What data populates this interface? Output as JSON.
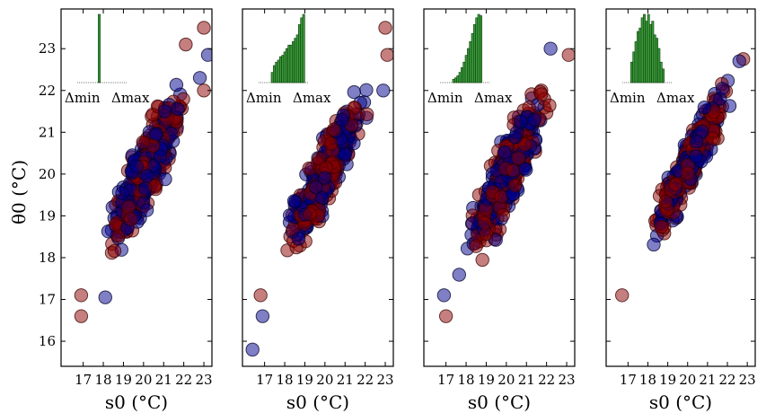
{
  "chart_data": {
    "type": "scatter",
    "layout": "1x4 panels, shared y-axis",
    "ylabel": "θ0 (°C)",
    "xlabel": "s0 (°C)",
    "xlim": [
      15.9,
      23.4
    ],
    "ylim": [
      15.4,
      23.95
    ],
    "xticks": [
      17,
      18,
      19,
      20,
      21,
      22,
      23
    ],
    "yticks": [
      16,
      17,
      18,
      19,
      20,
      21,
      22,
      23
    ],
    "series_colors": {
      "red": "#8b0000",
      "blue": "#00008b"
    },
    "inset": {
      "type": "histogram",
      "color": "#3a9a3a",
      "label_min": "Δmin",
      "label_max": "Δmax"
    },
    "panels": [
      {
        "label": "panel-1",
        "cloud": {
          "x_range": [
            17.2,
            23.0
          ],
          "y_center": 20.0,
          "spread": 0.55
        },
        "outliers": [
          {
            "x": 16.9,
            "y": 17.1,
            "c": "red"
          },
          {
            "x": 16.9,
            "y": 16.6,
            "c": "red"
          },
          {
            "x": 18.1,
            "y": 17.05,
            "c": "blue"
          },
          {
            "x": 23.0,
            "y": 23.5,
            "c": "red"
          },
          {
            "x": 22.1,
            "y": 23.1,
            "c": "red"
          },
          {
            "x": 23.2,
            "y": 22.85,
            "c": "blue"
          },
          {
            "x": 22.8,
            "y": 22.3,
            "c": "blue"
          },
          {
            "x": 23.0,
            "y": 22.0,
            "c": "red"
          }
        ],
        "hist": [
          0,
          0,
          0,
          0,
          0,
          0,
          0,
          0,
          0,
          0,
          1,
          0,
          0,
          0,
          0,
          0,
          0,
          0,
          0,
          0,
          0,
          0,
          0,
          0
        ]
      },
      {
        "label": "panel-2",
        "cloud": {
          "x_range": [
            17.2,
            23.0
          ],
          "y_center": 20.0,
          "spread": 0.5
        },
        "outliers": [
          {
            "x": 16.8,
            "y": 17.1,
            "c": "red"
          },
          {
            "x": 16.9,
            "y": 16.6,
            "c": "blue"
          },
          {
            "x": 16.4,
            "y": 15.8,
            "c": "blue"
          },
          {
            "x": 23.0,
            "y": 23.5,
            "c": "red"
          },
          {
            "x": 23.1,
            "y": 22.85,
            "c": "red"
          },
          {
            "x": 22.9,
            "y": 22.0,
            "c": "blue"
          }
        ],
        "hist": [
          0,
          0,
          0,
          0,
          0,
          0,
          0.15,
          0.25,
          0.3,
          0.33,
          0.38,
          0.4,
          0.45,
          0.5,
          0.55,
          0.55,
          0.6,
          0.65,
          0.7,
          0.85,
          0.95,
          1.0,
          0,
          0
        ]
      },
      {
        "label": "panel-3",
        "cloud": {
          "x_range": [
            17.2,
            23.0
          ],
          "y_center": 20.0,
          "spread": 0.55
        },
        "outliers": [
          {
            "x": 16.9,
            "y": 17.1,
            "c": "blue"
          },
          {
            "x": 17.0,
            "y": 16.6,
            "c": "red"
          },
          {
            "x": 22.2,
            "y": 23.0,
            "c": "blue"
          },
          {
            "x": 23.1,
            "y": 22.85,
            "c": "red"
          }
        ],
        "hist": [
          0,
          0,
          0,
          0,
          0,
          0,
          0.05,
          0.07,
          0.1,
          0.15,
          0.22,
          0.3,
          0.4,
          0.5,
          0.6,
          0.72,
          0.85,
          0.95,
          1.0,
          0.98,
          0,
          0,
          0,
          0
        ]
      },
      {
        "label": "panel-4",
        "cloud": {
          "x_range": [
            17.3,
            23.0
          ],
          "y_center": 20.2,
          "spread": 0.4
        },
        "outliers": [
          {
            "x": 16.7,
            "y": 17.1,
            "c": "red"
          },
          {
            "x": 22.8,
            "y": 22.75,
            "c": "red"
          },
          {
            "x": 22.6,
            "y": 22.7,
            "c": "blue"
          }
        ],
        "hist": [
          0,
          0,
          0,
          0,
          0.3,
          0.45,
          0.6,
          0.75,
          0.8,
          0.95,
          1.0,
          0.9,
          1.0,
          0.85,
          0.9,
          0.7,
          0.65,
          0.5,
          0.3,
          0.2,
          0,
          0,
          0,
          0
        ]
      }
    ]
  }
}
